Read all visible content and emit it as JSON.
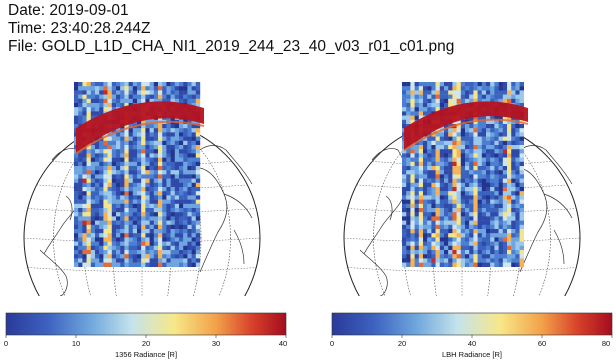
{
  "header": {
    "date_line": "Date: 2019-09-01",
    "time_line": "Time: 23:40:28.244Z",
    "file_line": "File: GOLD_L1D_CHA_NI1_2019_244_23_40_v03_r01_c01.png"
  },
  "panels": [
    {
      "colorbar": {
        "title": "1356 Radiance [R]",
        "ticks": [
          "0",
          "10",
          "20",
          "30",
          "40"
        ],
        "range": [
          0,
          40
        ]
      }
    },
    {
      "colorbar": {
        "title": "LBH Radiance [R]",
        "ticks": [
          "0",
          "20",
          "40",
          "60",
          "80"
        ],
        "range": [
          0,
          80
        ]
      }
    }
  ],
  "colors": {
    "low": "#2c3e9e",
    "mid_low": "#4a7fd0",
    "mid": "#a8d4e8",
    "mid_high": "#f5e27a",
    "high": "#e8862e",
    "max": "#b01020"
  }
}
